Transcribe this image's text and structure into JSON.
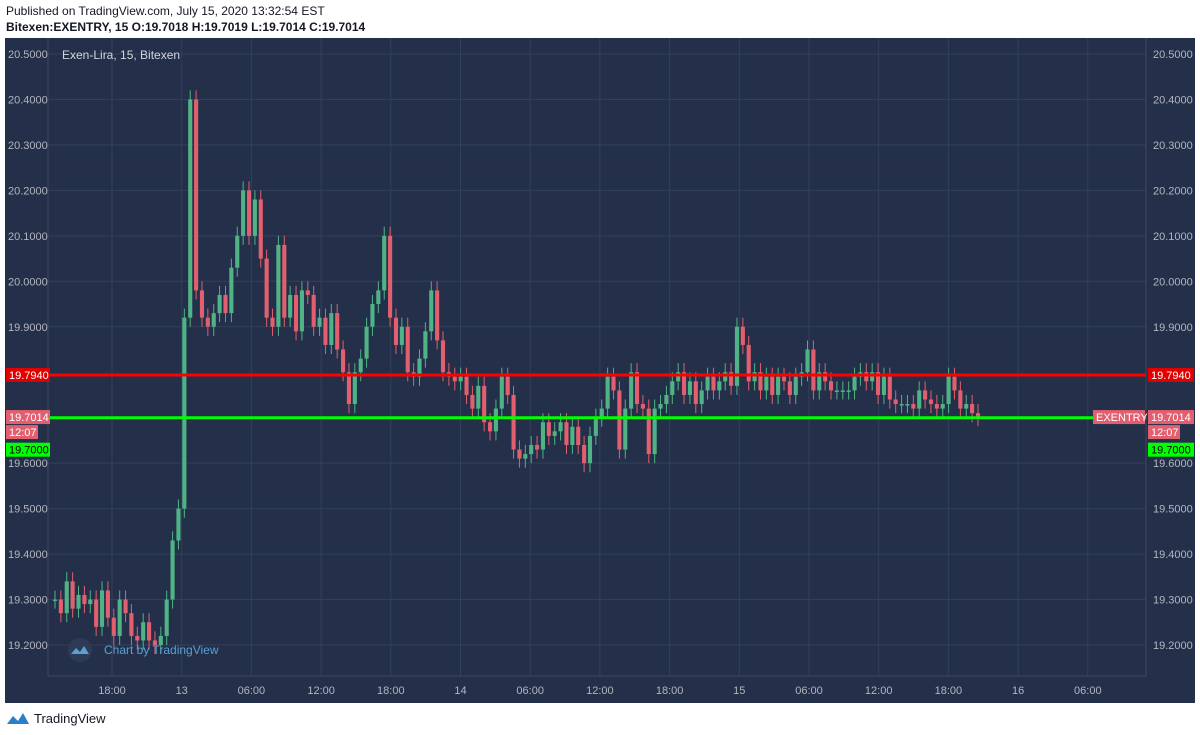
{
  "header": {
    "published": "Published on TradingView.com, July 15, 2020 13:32:54 EST",
    "symbol_line": {
      "symbol": "Bitexen:EXENTRY, 15",
      "o_label": "O:",
      "o": "19.7018",
      "h_label": "H:",
      "h": "19.7019",
      "l_label": "L:",
      "l": "19.7014",
      "c_label": "C:",
      "c": "19.7014"
    }
  },
  "pane_title": "Exen-Lira, 15, Bitexen",
  "watermark": "Chart by TradingView",
  "footer_brand": "TradingView",
  "colors": {
    "pane_bg": "#24304a",
    "grid": "#33405a",
    "up": "#4fb386",
    "down": "#e15f6e",
    "red_line": "#ff0000",
    "green_line": "#00ff00",
    "price_tag": "#e15f6e",
    "label_text": "#b2b5be"
  },
  "chart_data": {
    "type": "candlestick",
    "title": "Exen-Lira, 15, Bitexen",
    "interval": "15",
    "ylim": [
      19.12,
      20.56
    ],
    "y_ticks": [
      "20.5000",
      "20.4000",
      "20.3000",
      "20.2000",
      "20.1000",
      "20.0000",
      "19.9000",
      "19.6000",
      "19.5000",
      "19.4000",
      "19.3000",
      "19.2000"
    ],
    "x_ticks": [
      "18:00",
      "13",
      "06:00",
      "12:00",
      "18:00",
      "14",
      "06:00",
      "12:00",
      "18:00",
      "15",
      "06:00",
      "12:00",
      "18:00",
      "16",
      "06:00"
    ],
    "horizontal_lines": [
      {
        "value": 19.794,
        "label": "19.7940",
        "color": "#ff0000"
      },
      {
        "value": 19.7,
        "label": "19.7000",
        "color": "#00ff00"
      }
    ],
    "last_price": {
      "value": 19.7014,
      "label": "19.7014",
      "countdown": "12:07",
      "symbol": "EXENTRY"
    },
    "series": [
      {
        "name": "EXENTRY",
        "close": [
          19.3,
          19.27,
          19.34,
          19.28,
          19.31,
          19.29,
          19.3,
          19.24,
          19.32,
          19.26,
          19.22,
          19.3,
          19.27,
          19.22,
          19.21,
          19.25,
          19.21,
          19.2,
          19.22,
          19.3,
          19.43,
          19.5,
          19.92,
          20.4,
          19.98,
          19.92,
          19.9,
          19.93,
          19.97,
          19.93,
          20.03,
          20.1,
          20.2,
          20.1,
          20.18,
          20.05,
          19.92,
          19.9,
          20.08,
          19.92,
          19.97,
          19.89,
          19.98,
          19.97,
          19.9,
          19.92,
          19.86,
          19.93,
          19.85,
          19.8,
          19.73,
          19.8,
          19.83,
          19.9,
          19.95,
          19.98,
          20.1,
          19.92,
          19.86,
          19.9,
          19.8,
          19.79,
          19.83,
          19.89,
          19.98,
          19.87,
          19.8,
          19.79,
          19.78,
          19.79,
          19.75,
          19.72,
          19.77,
          19.69,
          19.67,
          19.72,
          19.79,
          19.75,
          19.63,
          19.61,
          19.62,
          19.64,
          19.63,
          19.69,
          19.66,
          19.67,
          19.69,
          19.64,
          19.68,
          19.64,
          19.6,
          19.66,
          19.7,
          19.72,
          19.79,
          19.76,
          19.63,
          19.72,
          19.8,
          19.73,
          19.72,
          19.62,
          19.72,
          19.73,
          19.75,
          19.78,
          19.8,
          19.75,
          19.78,
          19.73,
          19.76,
          19.79,
          19.76,
          19.78,
          19.8,
          19.77,
          19.9,
          19.86,
          19.78,
          19.8,
          19.76,
          19.79,
          19.75,
          19.79,
          19.78,
          19.75,
          19.79,
          19.8,
          19.85,
          19.76,
          19.8,
          19.78,
          19.76,
          19.76,
          19.76,
          19.76,
          19.79,
          19.8,
          19.78,
          19.8,
          19.75,
          19.79,
          19.74,
          19.73,
          19.73,
          19.73,
          19.72,
          19.76,
          19.74,
          19.73,
          19.72,
          19.73,
          19.79,
          19.76,
          19.72,
          19.73,
          19.71,
          19.7014
        ]
      }
    ]
  }
}
